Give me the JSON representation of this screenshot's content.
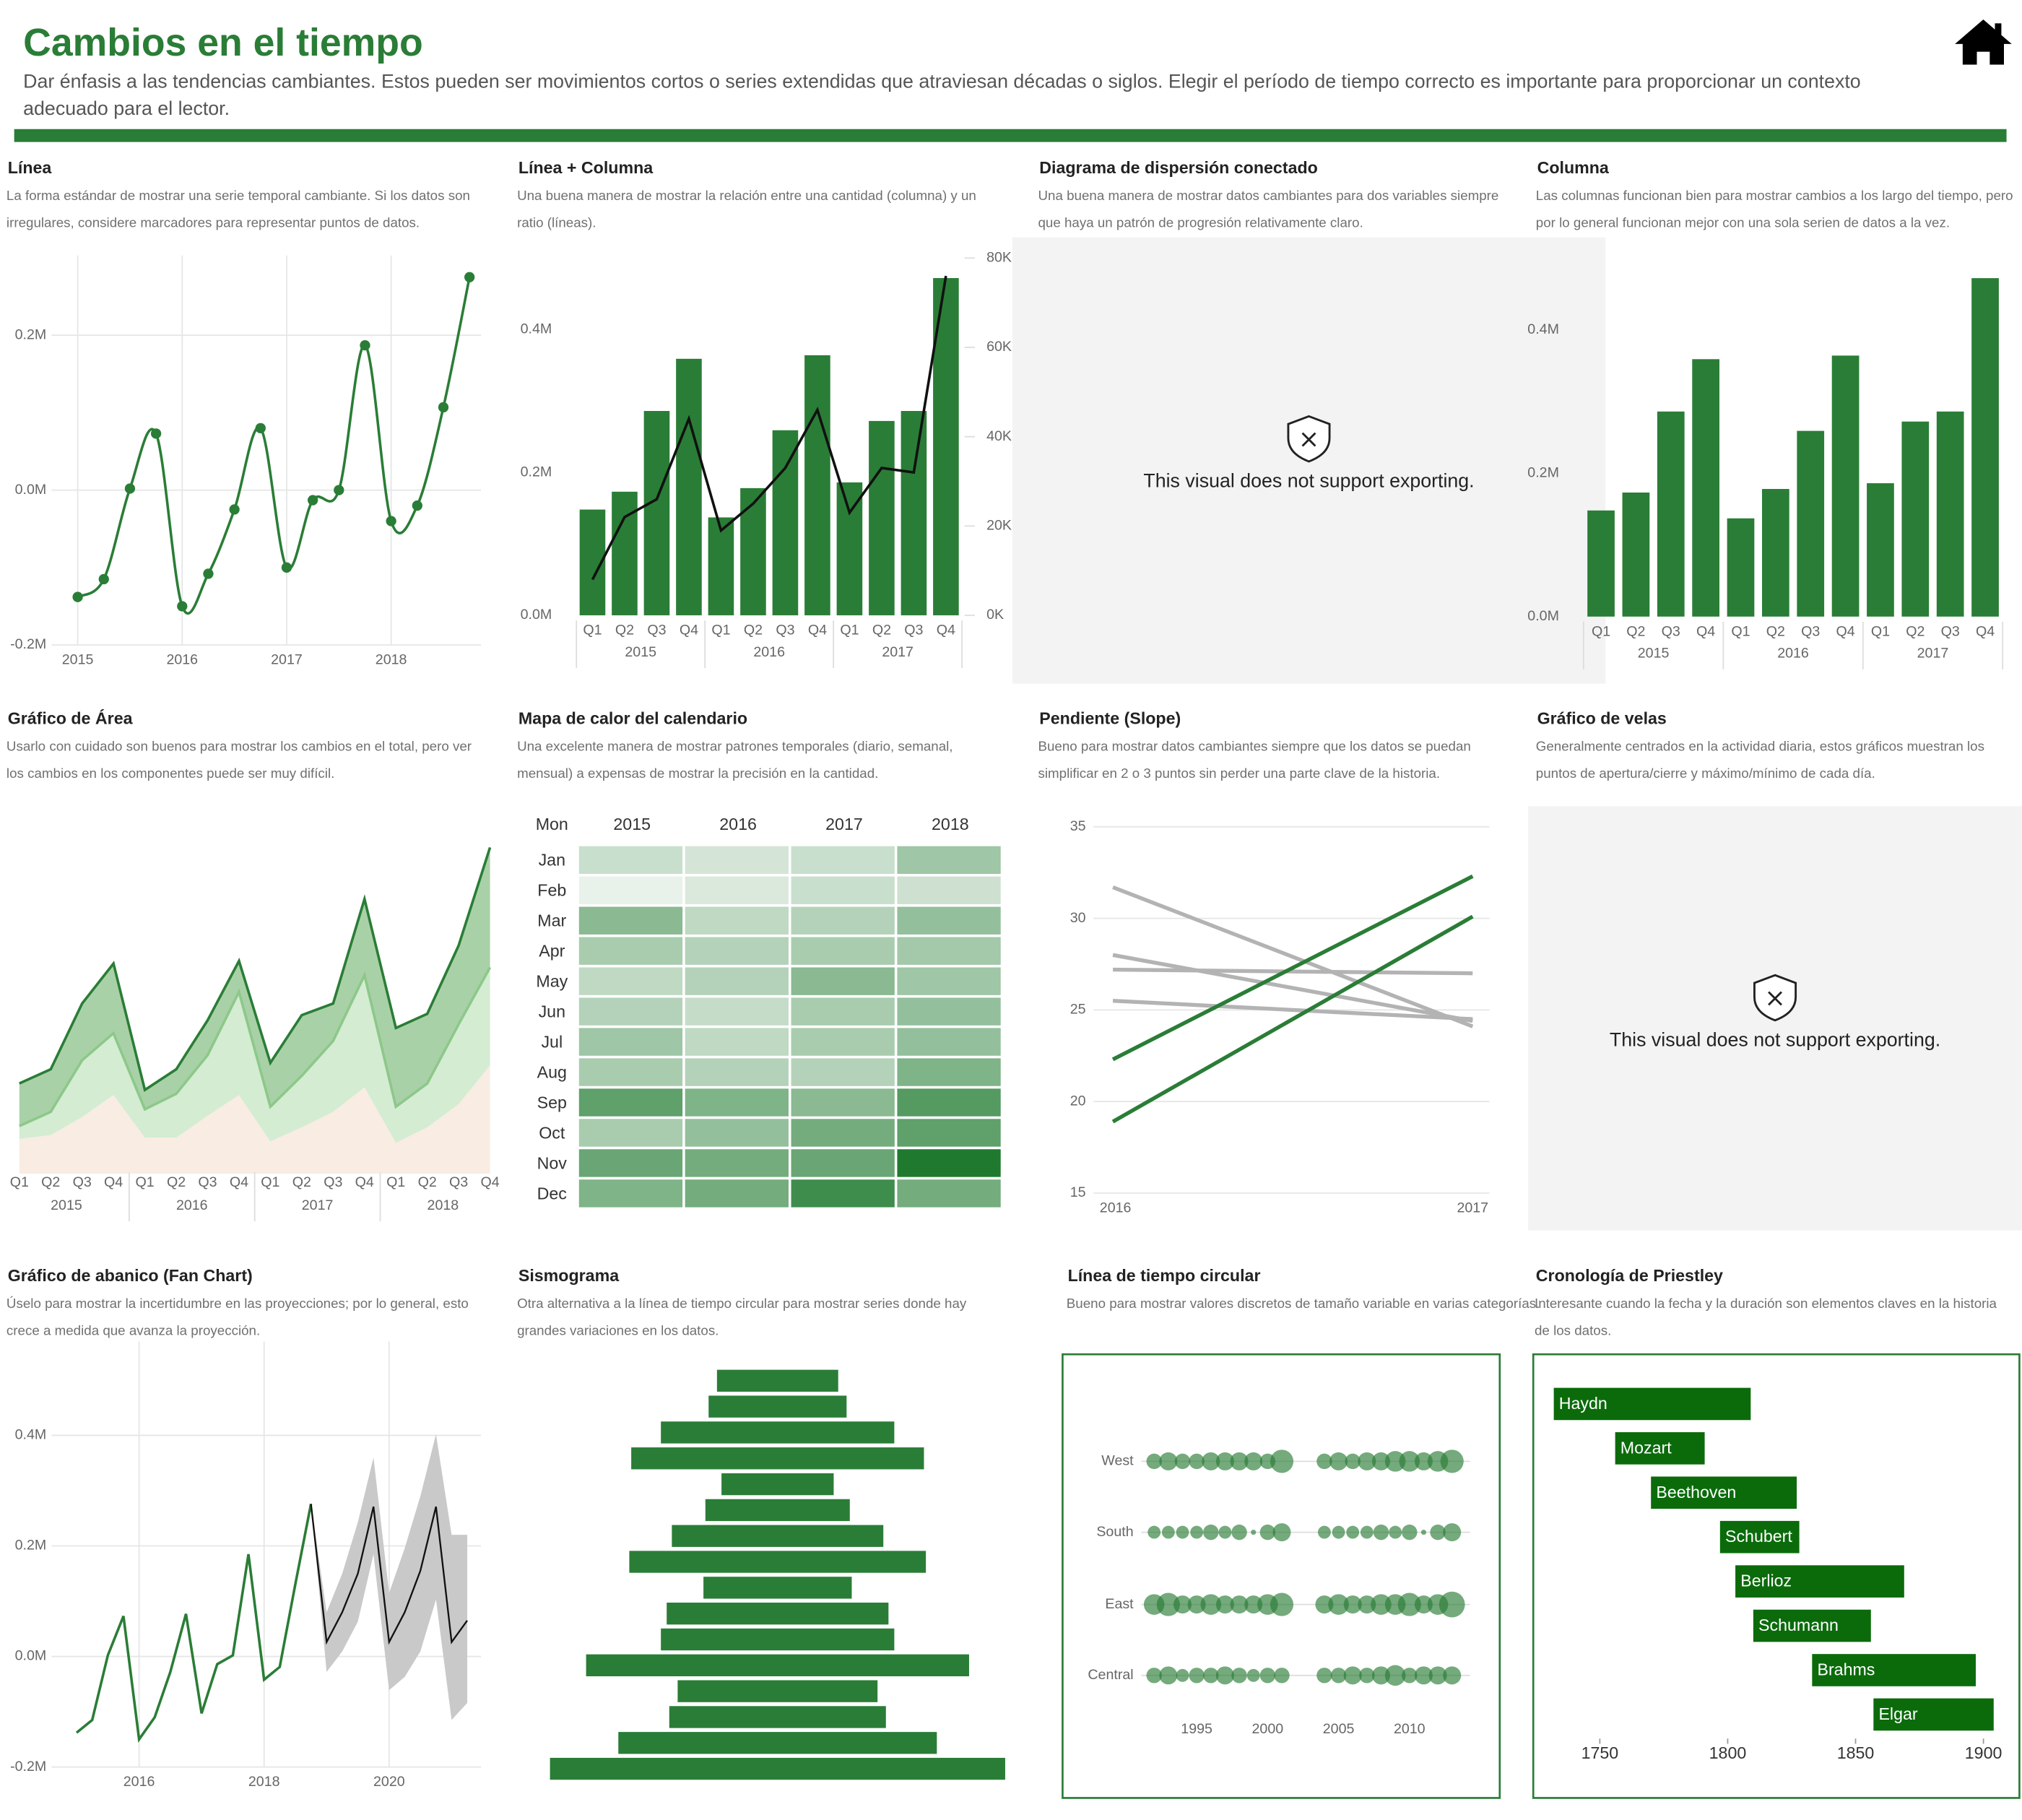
{
  "header": {
    "title": "Cambios en el tiempo",
    "description": "Dar énfasis a las tendencias cambiantes. Estos pueden ser movimientos cortos o series extendidas que atraviesan décadas o siglos. Elegir el período de tiempo correcto es importante para proporcionar un contexto adecuado para el lector."
  },
  "chart_data": [
    {
      "type": "line",
      "title": "Línea",
      "subtitle": "La forma estándar de mostrar una serie temporal cambiante. Si los datos son irregulares, considere marcadores para representar puntos de datos.",
      "x": [
        2015,
        2015.25,
        2015.5,
        2015.75,
        2016,
        2016.25,
        2016.5,
        2016.75,
        2017,
        2017.25,
        2017.5,
        2017.75,
        2018,
        2018.25,
        2018.5,
        2018.75
      ],
      "values": [
        -138000,
        -115000,
        2000,
        73000,
        -150000,
        -108000,
        -25000,
        80000,
        -100000,
        -13000,
        0,
        187000,
        -40000,
        -20000,
        107000,
        275000
      ],
      "color": "#2a7d36",
      "markers": true,
      "grid": true,
      "xlim": [
        2014.75,
        2018.86
      ],
      "ylim": [
        -200000,
        303000
      ],
      "xticks": [
        2015,
        2016,
        2017,
        2018
      ],
      "yticks": [
        {
          "value": -200000,
          "label": "-0.2M"
        },
        {
          "value": 0,
          "label": "0.0M"
        },
        {
          "value": 200000,
          "label": "0.2M"
        }
      ]
    },
    {
      "type": "combo",
      "title": "Línea + Columna",
      "subtitle": "Una buena manera de mostrar la relación entre una cantidad (columna) y un ratio (líneas).",
      "categories": [
        "Q1",
        "Q2",
        "Q3",
        "Q4",
        "Q1",
        "Q2",
        "Q3",
        "Q4",
        "Q1",
        "Q2",
        "Q3",
        "Q4"
      ],
      "category_groups": [
        "2015",
        "2016",
        "2017"
      ],
      "series": [
        {
          "mark": "bar",
          "color": "#2a7d36",
          "values": [
            148000,
            173000,
            286000,
            359000,
            137000,
            178000,
            259000,
            364000,
            186000,
            272000,
            286000,
            472000
          ]
        },
        {
          "mark": "line",
          "color": "#111111",
          "axis": "y2",
          "values": [
            8000,
            22000,
            26000,
            44000,
            19000,
            25000,
            33000,
            46000,
            23000,
            33000,
            32000,
            76000
          ]
        }
      ],
      "ylim": [
        0,
        500000
      ],
      "yticks": [
        {
          "value": 0,
          "label": "0.0M"
        },
        {
          "value": 200000,
          "label": "0.2M"
        },
        {
          "value": 400000,
          "label": "0.4M"
        }
      ],
      "y2lim": [
        0,
        80000
      ],
      "y2ticks": [
        {
          "value": 0,
          "label": "0K"
        },
        {
          "value": 20000,
          "label": "20K"
        },
        {
          "value": 40000,
          "label": "40K"
        },
        {
          "value": 60000,
          "label": "60K"
        },
        {
          "value": 80000,
          "label": "80K"
        }
      ]
    },
    {
      "type": "unsupported",
      "title": "Diagrama de dispersión conectado",
      "subtitle": "Una buena manera de mostrar datos cambiantes para dos variables siempre que haya un patrón de progresión relativamente claro.",
      "message": "This visual does not support exporting."
    },
    {
      "type": "bar",
      "title": "Columna",
      "subtitle": "Las columnas funcionan bien para mostrar cambios a los largo del tiempo, pero por lo general funcionan mejor con una sola serien de datos a la vez.",
      "categories": [
        "Q1",
        "Q2",
        "Q3",
        "Q4",
        "Q1",
        "Q2",
        "Q3",
        "Q4",
        "Q1",
        "Q2",
        "Q3",
        "Q4"
      ],
      "category_groups": [
        "2015",
        "2016",
        "2017"
      ],
      "values": [
        148000,
        173000,
        286000,
        359000,
        137000,
        178000,
        259000,
        364000,
        186000,
        272000,
        286000,
        472000
      ],
      "color": "#2a7d36",
      "ylim": [
        0,
        500000
      ],
      "yticks": [
        {
          "value": 0,
          "label": "0.0M"
        },
        {
          "value": 200000,
          "label": "0.2M"
        },
        {
          "value": 400000,
          "label": "0.4M"
        }
      ]
    },
    {
      "type": "area",
      "title": "Gráfico de Área",
      "subtitle": "Usarlo con cuidado son buenos para mostrar los cambios en el total, pero ver los cambios en los componentes puede ser muy difícil.",
      "categories": [
        "Q1",
        "Q2",
        "Q3",
        "Q4",
        "Q1",
        "Q2",
        "Q3",
        "Q4",
        "Q1",
        "Q2",
        "Q3",
        "Q4",
        "Q1",
        "Q2",
        "Q3",
        "Q4"
      ],
      "category_groups": [
        "2015",
        "2016",
        "2017",
        "2018"
      ],
      "series": [
        {
          "color": "#f8ece3",
          "values": [
            27,
            30,
            44,
            61,
            28,
            28,
            45,
            61,
            25,
            36,
            48,
            67,
            24,
            36,
            54,
            84
          ]
        },
        {
          "color": "#d4ecd2",
          "line_color": "#8cc88a",
          "values": [
            10,
            18,
            44,
            48,
            22,
            34,
            47,
            80,
            27,
            40,
            55,
            87,
            28,
            34,
            62,
            76
          ]
        },
        {
          "color": "#a9d1a7",
          "line_color": "#2a7d36",
          "values": [
            33,
            33,
            44,
            54,
            15,
            19,
            27,
            24,
            34,
            47,
            29,
            59,
            61,
            54,
            61,
            93
          ]
        }
      ],
      "ylim": [
        0,
        255
      ]
    },
    {
      "type": "heatmap",
      "title": "Mapa de calor del calendario",
      "subtitle": "Una excelente manera de mostrar patrones temporales (diario, semanal, mensual) a expensas de mostrar la precisión en la cantidad.",
      "corner_label": "Mon",
      "columns": [
        "2015",
        "2016",
        "2017",
        "2018"
      ],
      "rows": [
        "Jan",
        "Feb",
        "Mar",
        "Apr",
        "May",
        "Jun",
        "Jul",
        "Aug",
        "Sep",
        "Oct",
        "Nov",
        "Dec"
      ],
      "values": [
        [
          20,
          15,
          20,
          40
        ],
        [
          5,
          12,
          20,
          18
        ],
        [
          50,
          25,
          30,
          45
        ],
        [
          35,
          30,
          35,
          38
        ],
        [
          25,
          30,
          50,
          40
        ],
        [
          30,
          22,
          35,
          45
        ],
        [
          40,
          25,
          35,
          45
        ],
        [
          35,
          30,
          30,
          55
        ],
        [
          70,
          55,
          50,
          75
        ],
        [
          35,
          45,
          60,
          70
        ],
        [
          65,
          60,
          65,
          100
        ],
        [
          55,
          60,
          85,
          60
        ]
      ],
      "zlim": [
        0,
        100
      ],
      "colors": [
        "#f4f8f4",
        "#1f7a30"
      ]
    },
    {
      "type": "slope",
      "title": "Pendiente (Slope)",
      "subtitle": "Bueno para mostrar datos cambiantes siempre que los datos se puedan simplificar en 2 o 3 puntos sin perder una parte clave de la historia.",
      "categories": [
        "2016",
        "2017"
      ],
      "series": [
        {
          "color": "#b3b3b3",
          "values": [
            31.7,
            24.1
          ]
        },
        {
          "color": "#b3b3b3",
          "values": [
            28,
            24.4
          ]
        },
        {
          "color": "#b3b3b3",
          "values": [
            27.2,
            27
          ]
        },
        {
          "color": "#b3b3b3",
          "values": [
            25.5,
            24.5
          ]
        },
        {
          "color": "#2a7d36",
          "values": [
            22.3,
            32.3
          ]
        },
        {
          "color": "#2a7d36",
          "values": [
            18.9,
            30.1
          ]
        }
      ],
      "ylim": [
        15,
        35
      ],
      "yticks": [
        15,
        20,
        25,
        30,
        35
      ],
      "grid": true
    },
    {
      "type": "unsupported",
      "title": "Gráfico de velas",
      "subtitle": "Generalmente centrados en la actividad diaria, estos gráficos muestran los puntos de apertura/cierre y máximo/mínimo de cada día.",
      "message": "This visual does not support exporting."
    },
    {
      "type": "fan",
      "title": "Gráfico de abanico (Fan Chart)",
      "subtitle": "Úselo para mostrar la incertidumbre en las proyecciones; por lo general, esto crece a medida que avanza la proyección.",
      "series": [
        {
          "color": "#2a7d36",
          "x": [
            2015,
            2015.25,
            2015.5,
            2015.75,
            2016,
            2016.25,
            2016.5,
            2016.75,
            2017,
            2017.25,
            2017.5,
            2017.75,
            2018,
            2018.25,
            2018.5,
            2018.75
          ],
          "values": [
            -138000,
            -115000,
            2000,
            73000,
            -150000,
            -110000,
            -28000,
            77000,
            -103000,
            -14000,
            2000,
            185000,
            -42000,
            -19000,
            131000,
            276000
          ]
        },
        {
          "color": "#111111",
          "x": [
            2018.75,
            2019,
            2019.25,
            2019.5,
            2019.75,
            2020,
            2020.25,
            2020.5,
            2020.75,
            2021,
            2021.25
          ],
          "values": [
            276000,
            26000,
            80000,
            150000,
            271000,
            26000,
            80000,
            155000,
            271000,
            26000,
            65000
          ]
        }
      ],
      "band": {
        "color": "#c9c9c9",
        "x": [
          2018.75,
          2019,
          2019.25,
          2019.5,
          2019.75,
          2020,
          2020.25,
          2020.5,
          2020.75,
          2021,
          2021.25
        ],
        "lower": [
          276000,
          -28000,
          9000,
          63000,
          185000,
          -61000,
          -37000,
          9000,
          103000,
          -115000,
          -84000
        ],
        "upper": [
          276000,
          80000,
          150000,
          243000,
          360000,
          115000,
          196000,
          290000,
          402000,
          220000,
          220000
        ]
      },
      "grid": true,
      "xlim": [
        2014.6,
        2021.47
      ],
      "ylim": [
        -200000,
        570000
      ],
      "xticks": [
        2016,
        2018,
        2020
      ],
      "yticks": [
        {
          "value": -200000,
          "label": "-0.2M"
        },
        {
          "value": 0,
          "label": "0.0M"
        },
        {
          "value": 200000,
          "label": "0.2M"
        },
        {
          "value": 400000,
          "label": "0.4M"
        }
      ]
    },
    {
      "type": "seismogram",
      "title": "Sismograma",
      "subtitle": "Otra alternativa a la línea de tiempo circular para mostrar series donde hay grandes variaciones en los datos.",
      "values": [
        94,
        107,
        181,
        227,
        87,
        112,
        164,
        230,
        115,
        172,
        181,
        297,
        155,
        168,
        247,
        353
      ],
      "color": "#2a7d36",
      "xlim": [
        0,
        360
      ]
    },
    {
      "type": "bubble",
      "title": "Línea de tiempo circular",
      "subtitle": "Bueno para mostrar valores discretos de tamaño variable en varias categorías.",
      "x": [
        1992,
        1993,
        1994,
        1995,
        1996,
        1997,
        1998,
        1999,
        2000,
        2001,
        2004,
        2005,
        2006,
        2007,
        2008,
        2009,
        2010,
        2011,
        2012,
        2013
      ],
      "series": [
        {
          "name": "West",
          "values": [
            6,
            7,
            6,
            6,
            7,
            7,
            7,
            7,
            6,
            9,
            6,
            7,
            6,
            7,
            7,
            8,
            8,
            7,
            8,
            9
          ]
        },
        {
          "name": "South",
          "values": [
            5,
            5,
            5,
            5,
            6,
            5,
            6,
            2,
            6,
            7,
            5,
            5,
            5,
            5,
            6,
            5,
            6,
            2,
            6,
            7
          ]
        },
        {
          "name": "East",
          "values": [
            8,
            9,
            7,
            7,
            8,
            7,
            7,
            7,
            8,
            9,
            7,
            8,
            7,
            7,
            8,
            8,
            9,
            7,
            8,
            10
          ]
        },
        {
          "name": "Central",
          "values": [
            6,
            7,
            5,
            6,
            6,
            7,
            6,
            5,
            6,
            6,
            6,
            6,
            7,
            6,
            7,
            8,
            6,
            7,
            7,
            7
          ]
        }
      ],
      "color": "#2a7d36",
      "xlim": [
        1990,
        2015
      ],
      "xticks": [
        1995,
        2000,
        2005,
        2010
      ]
    },
    {
      "type": "timeline",
      "title": "Cronología de Priestley",
      "subtitle": "Interesante cuando la fecha y la duración son elementos claves en la historia de los datos.",
      "categories": [
        "Haydn",
        "Mozart",
        "Beethoven",
        "Schubert",
        "Berlioz",
        "Schumann",
        "Brahms",
        "Elgar"
      ],
      "start": [
        1732,
        1756,
        1770,
        1797,
        1803,
        1810,
        1833,
        1857
      ],
      "end": [
        1809,
        1791,
        1827,
        1828,
        1869,
        1856,
        1897,
        1904
      ],
      "color": "#0b6b0b",
      "xlim": [
        1727,
        1906
      ],
      "xticks": [
        1750,
        1800,
        1850,
        1900
      ]
    }
  ]
}
